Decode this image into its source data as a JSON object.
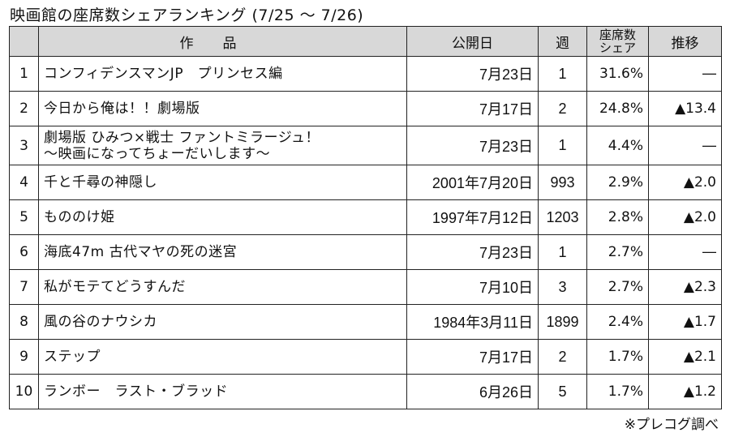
{
  "title": "映画館の座席数シェアランキング (7/25 ～ 7/26)",
  "table": {
    "headers": {
      "rank": "",
      "title": "作品",
      "release": "公開日",
      "weeks": "週",
      "share_line1": "座席数",
      "share_line2": "シェア",
      "trend": "推移"
    },
    "rows": [
      {
        "rank": "1",
        "title": [
          "コンフィデンスマンJP　プリンセス編"
        ],
        "release": "7月23日",
        "weeks": "1",
        "share": "31.6%",
        "trend": "―"
      },
      {
        "rank": "2",
        "title": [
          "今日から俺は！！劇場版"
        ],
        "release": "7月17日",
        "weeks": "2",
        "share": "24.8%",
        "trend": "▲13.4"
      },
      {
        "rank": "3",
        "title": [
          "劇場版 ひみつ×戦士 ファントミラージュ！",
          "～映画になってちょーだいします～"
        ],
        "release": "7月23日",
        "weeks": "1",
        "share": "4.4%",
        "trend": "―"
      },
      {
        "rank": "4",
        "title": [
          "千と千尋の神隠し"
        ],
        "release": "2001年7月20日",
        "weeks": "993",
        "share": "2.9%",
        "trend": "▲2.0"
      },
      {
        "rank": "5",
        "title": [
          "もののけ姫"
        ],
        "release": "1997年7月12日",
        "weeks": "1203",
        "share": "2.8%",
        "trend": "▲2.0"
      },
      {
        "rank": "6",
        "title": [
          "海底47m 古代マヤの死の迷宮"
        ],
        "release": "7月23日",
        "weeks": "1",
        "share": "2.7%",
        "trend": "―"
      },
      {
        "rank": "7",
        "title": [
          "私がモテてどうすんだ"
        ],
        "release": "7月10日",
        "weeks": "3",
        "share": "2.7%",
        "trend": "▲2.3"
      },
      {
        "rank": "8",
        "title": [
          "風の谷のナウシカ"
        ],
        "release": "1984年3月11日",
        "weeks": "1899",
        "share": "2.4%",
        "trend": "▲1.7"
      },
      {
        "rank": "9",
        "title": [
          "ステップ"
        ],
        "release": "7月17日",
        "weeks": "2",
        "share": "1.7%",
        "trend": "▲2.1"
      },
      {
        "rank": "10",
        "title": [
          "ランボー　ラスト・ブラッド"
        ],
        "release": "6月26日",
        "weeks": "5",
        "share": "1.7%",
        "trend": "▲1.2"
      }
    ]
  },
  "source_note": "※プレコグ調べ"
}
